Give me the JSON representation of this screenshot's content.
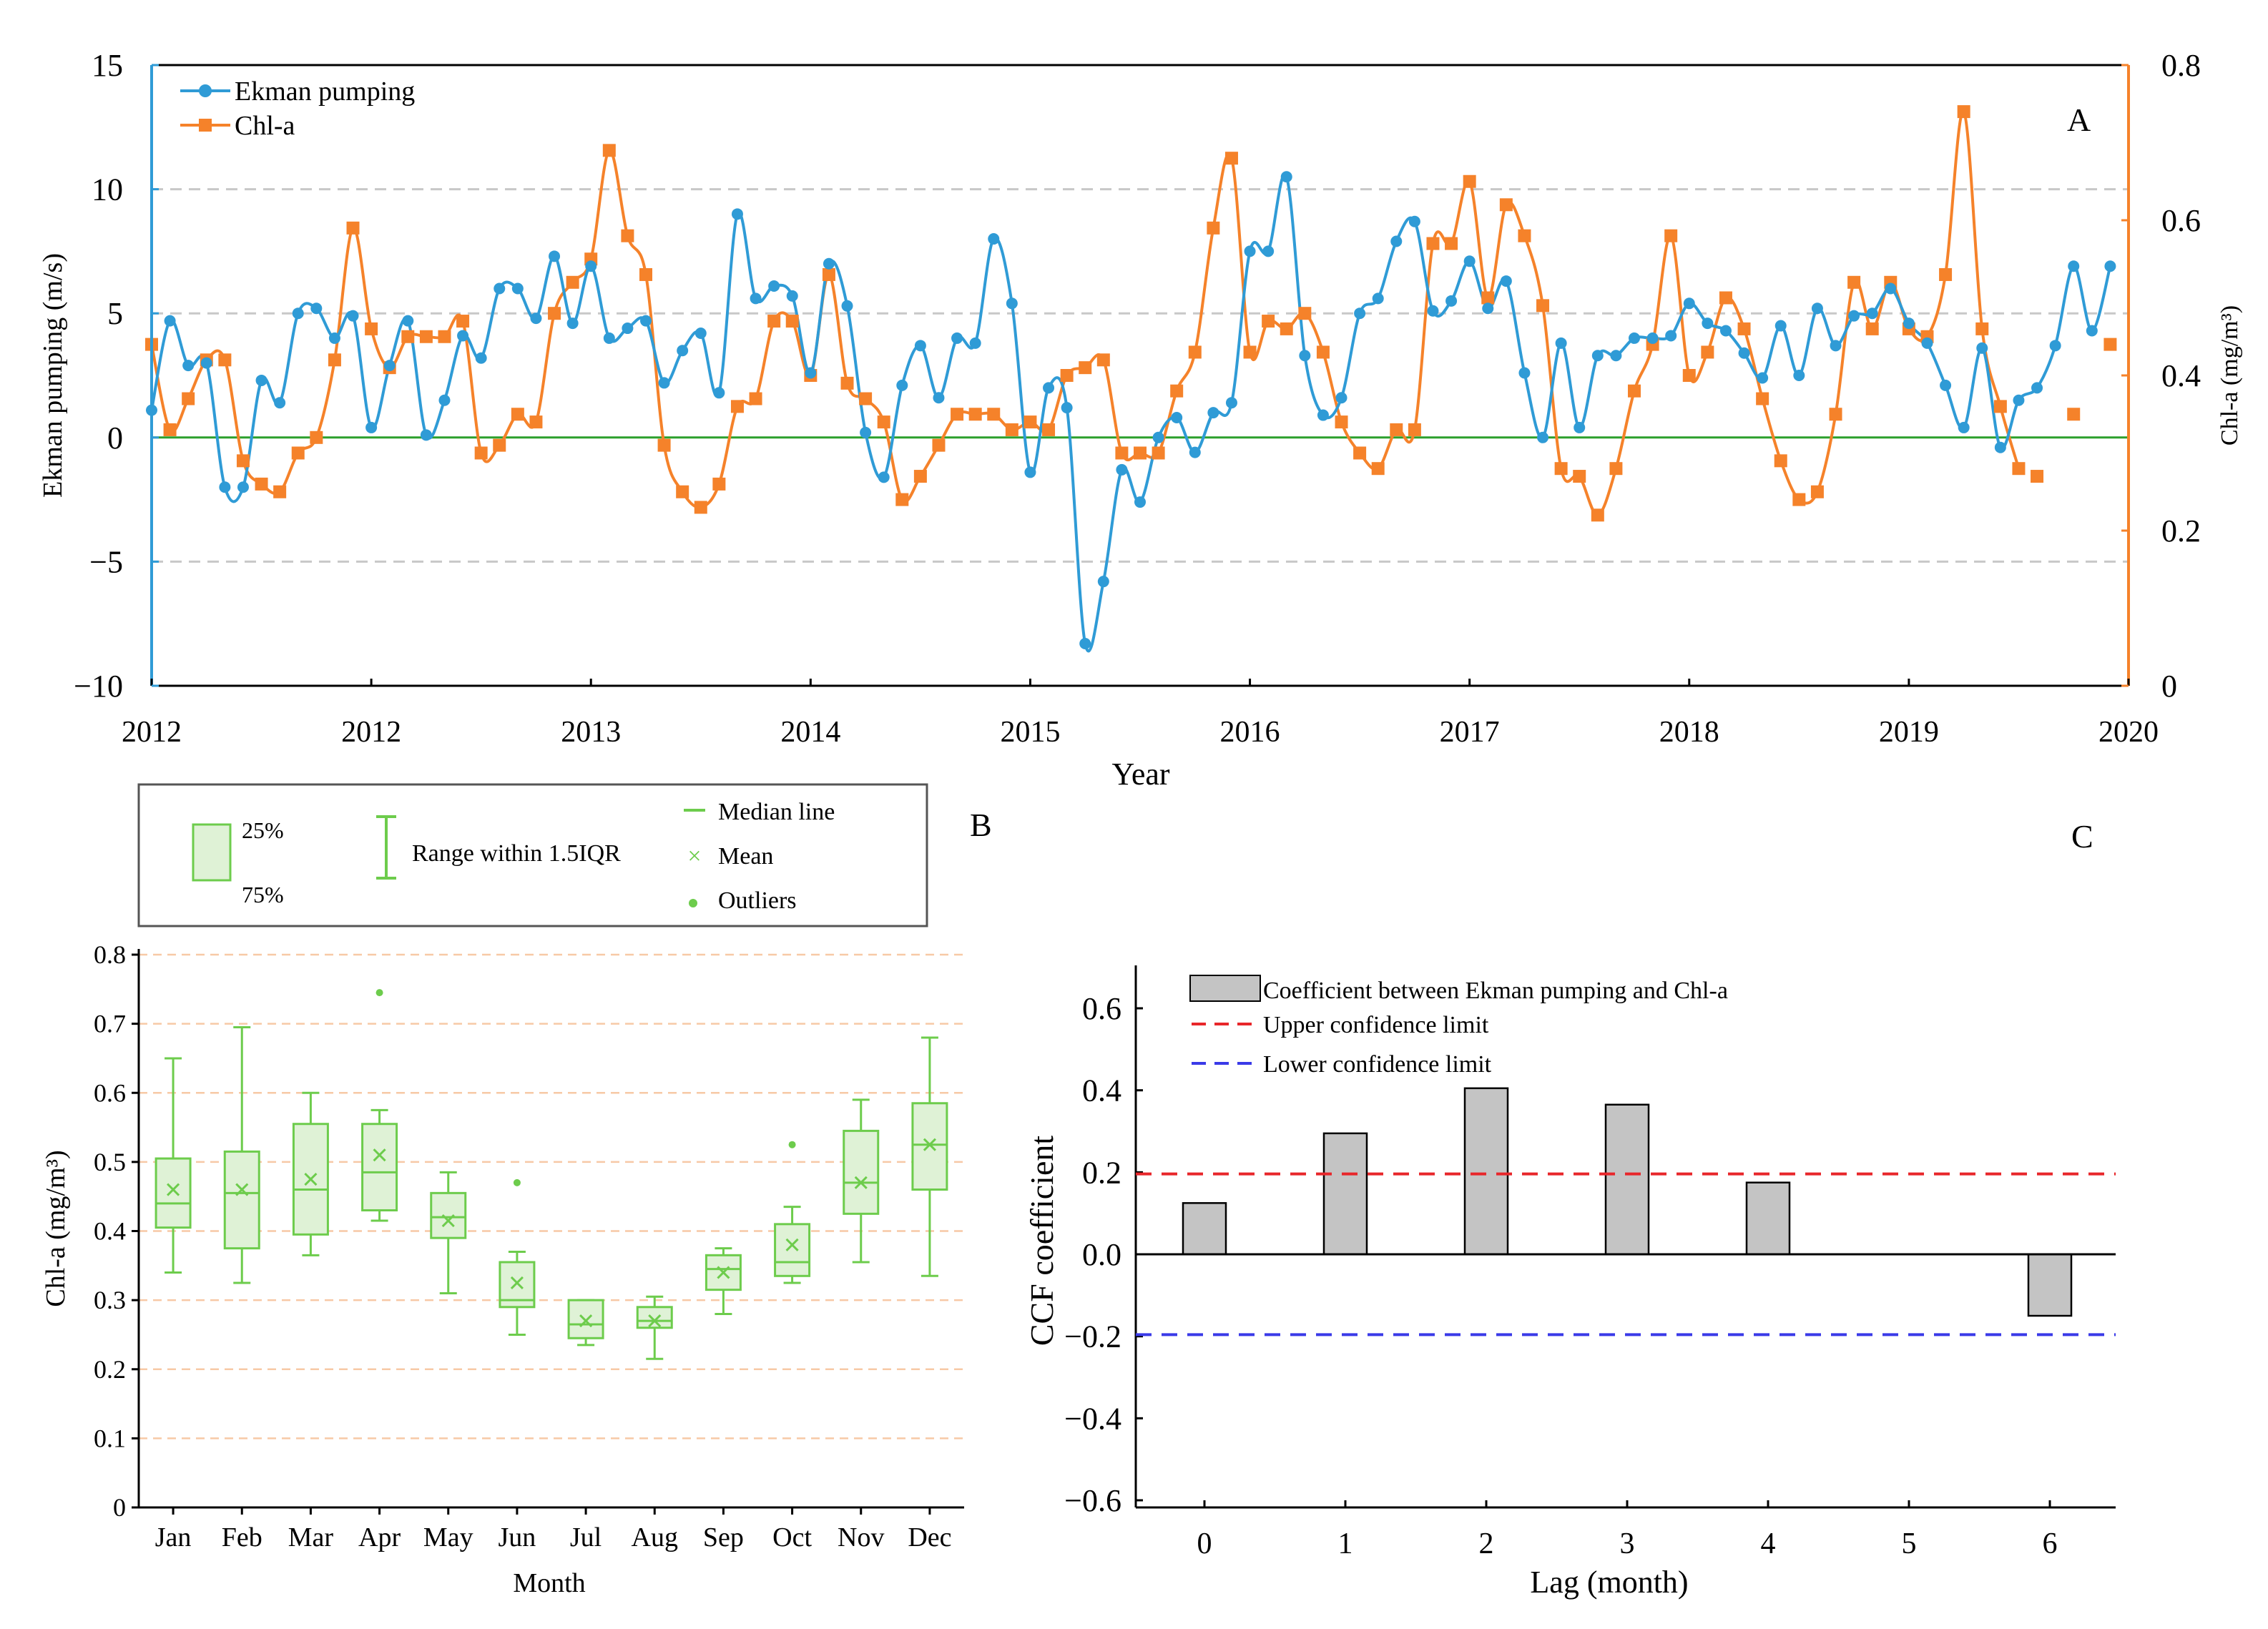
{
  "colors": {
    "ekman": "#2f9bd6",
    "chla": "#f5822a",
    "zero_line": "#2ca02c",
    "box_fill": "#dff2d6",
    "box_stroke": "#6dcc4c",
    "grid_a": "#c8c8c8",
    "grid_b": "#f7c9a6",
    "bar_fill": "#c4c4c4",
    "upper_limit": "#e8262a",
    "lower_limit": "#3a3ae8"
  },
  "chart_data": [
    {
      "panel": "A",
      "type": "line",
      "title": "",
      "panel_label": "A",
      "xlabel": "Year",
      "ylabel": "Ekman pumping (m/s)",
      "ylabel_right": "Chl-a (mg/m³)",
      "x_tick_labels": [
        "2012",
        "2012",
        "2013",
        "2014",
        "2015",
        "2016",
        "2017",
        "2018",
        "2019",
        "2020"
      ],
      "y_ticks": [
        "-10",
        "-5",
        "0",
        "5",
        "10",
        "15"
      ],
      "y_ticks_right": [
        "0",
        "0.2",
        "0.4",
        "0.6",
        "0.8"
      ],
      "ylim": [
        -10,
        15
      ],
      "ylim_right": [
        0,
        0.8
      ],
      "xlim_months": [
        0,
        108
      ],
      "gridlines_y": [
        -5,
        5,
        10
      ],
      "legend_position": "top-left",
      "series": [
        {
          "name": "Ekman pumping",
          "axis": "left",
          "marker": "circle",
          "values": [
            1.1,
            4.7,
            2.9,
            3.0,
            -2.0,
            -2.0,
            2.3,
            1.4,
            5.0,
            5.2,
            4.0,
            4.9,
            0.4,
            2.9,
            4.7,
            0.1,
            1.5,
            4.1,
            3.2,
            6.0,
            6.0,
            4.8,
            7.3,
            4.6,
            6.9,
            4.0,
            4.4,
            4.7,
            2.2,
            3.5,
            4.2,
            1.8,
            9.0,
            5.6,
            6.1,
            5.7,
            2.6,
            7.0,
            5.3,
            0.2,
            -1.6,
            2.1,
            3.7,
            1.6,
            4.0,
            3.8,
            8.0,
            5.4,
            -1.4,
            2.0,
            1.2,
            -8.3,
            -5.8,
            -1.3,
            -2.6,
            0.0,
            0.8,
            -0.6,
            1.0,
            1.4,
            7.5,
            7.5,
            10.5,
            3.3,
            0.9,
            1.6,
            5.0,
            5.6,
            7.9,
            8.7,
            5.1,
            5.5,
            7.1,
            5.2,
            6.3,
            2.6,
            0.0,
            3.8,
            0.4,
            3.3,
            3.3,
            4.0,
            4.0,
            4.1,
            5.4,
            4.6,
            4.3,
            3.4,
            2.4,
            4.5,
            2.5,
            5.2,
            3.7,
            4.9,
            5.0,
            6.0,
            4.6,
            3.8,
            2.1,
            0.4,
            3.6,
            -0.4,
            1.5,
            2.0,
            3.7,
            6.9,
            4.3,
            6.9
          ]
        },
        {
          "name": "Chl-a",
          "axis": "right",
          "marker": "square",
          "values": [
            0.44,
            0.33,
            0.37,
            0.42,
            0.42,
            0.29,
            0.26,
            0.25,
            0.3,
            0.32,
            0.42,
            0.59,
            0.46,
            0.41,
            0.45,
            0.45,
            0.45,
            0.47,
            0.3,
            0.31,
            0.35,
            0.34,
            0.48,
            0.52,
            0.55,
            0.69,
            0.58,
            0.53,
            0.31,
            0.25,
            0.23,
            0.26,
            0.36,
            0.37,
            0.47,
            0.47,
            0.4,
            0.53,
            0.39,
            0.37,
            0.34,
            0.24,
            0.27,
            0.31,
            0.35,
            0.35,
            0.35,
            0.33,
            0.34,
            0.33,
            0.4,
            0.41,
            0.42,
            0.3,
            0.3,
            0.3,
            0.38,
            0.43,
            0.59,
            0.68,
            0.43,
            0.47,
            0.46,
            0.48,
            0.43,
            0.34,
            0.3,
            0.28,
            0.33,
            0.33,
            0.57,
            0.57,
            0.65,
            0.5,
            0.62,
            0.58,
            0.49,
            0.28,
            0.27,
            0.22,
            0.28,
            0.38,
            0.44,
            0.58,
            0.4,
            0.43,
            0.5,
            0.46,
            0.37,
            0.29,
            0.24,
            0.25,
            0.35,
            0.52,
            0.46,
            0.52,
            0.46,
            0.45,
            0.53,
            0.74,
            0.46,
            0.36,
            0.28,
            0.27,
            null,
            0.35,
            null,
            0.44
          ]
        }
      ]
    },
    {
      "panel": "B",
      "type": "box",
      "title": "",
      "panel_label": "B",
      "xlabel": "Month",
      "ylabel": "Chl-a (mg/m³)",
      "categories": [
        "Jan",
        "Feb",
        "Mar",
        "Apr",
        "May",
        "Jun",
        "Jul",
        "Aug",
        "Sep",
        "Oct",
        "Nov",
        "Dec"
      ],
      "y_ticks": [
        "0",
        "0.1",
        "0.2",
        "0.3",
        "0.4",
        "0.5",
        "0.6",
        "0.7",
        "0.8"
      ],
      "ylim": [
        0,
        0.8
      ],
      "gridlines_y": [
        0.1,
        0.2,
        0.3,
        0.4,
        0.5,
        0.6,
        0.7,
        0.8
      ],
      "boxes": [
        {
          "min": 0.34,
          "q1": 0.405,
          "median": 0.44,
          "mean": 0.46,
          "q3": 0.505,
          "max": 0.65,
          "outliers": []
        },
        {
          "min": 0.325,
          "q1": 0.375,
          "median": 0.455,
          "mean": 0.46,
          "q3": 0.515,
          "max": 0.695,
          "outliers": []
        },
        {
          "min": 0.365,
          "q1": 0.395,
          "median": 0.46,
          "mean": 0.475,
          "q3": 0.555,
          "max": 0.6,
          "outliers": []
        },
        {
          "min": 0.415,
          "q1": 0.43,
          "median": 0.485,
          "mean": 0.51,
          "q3": 0.555,
          "max": 0.575,
          "outliers": [
            0.745
          ]
        },
        {
          "min": 0.31,
          "q1": 0.39,
          "median": 0.42,
          "mean": 0.415,
          "q3": 0.455,
          "max": 0.485,
          "outliers": []
        },
        {
          "min": 0.25,
          "q1": 0.29,
          "median": 0.3,
          "mean": 0.325,
          "q3": 0.355,
          "max": 0.37,
          "outliers": [
            0.47
          ]
        },
        {
          "min": 0.235,
          "q1": 0.245,
          "median": 0.265,
          "mean": 0.27,
          "q3": 0.3,
          "max": 0.3,
          "outliers": []
        },
        {
          "min": 0.215,
          "q1": 0.26,
          "median": 0.27,
          "mean": 0.27,
          "q3": 0.29,
          "max": 0.305,
          "outliers": []
        },
        {
          "min": 0.28,
          "q1": 0.315,
          "median": 0.345,
          "mean": 0.34,
          "q3": 0.365,
          "max": 0.375,
          "outliers": []
        },
        {
          "min": 0.325,
          "q1": 0.335,
          "median": 0.355,
          "mean": 0.38,
          "q3": 0.41,
          "max": 0.435,
          "outliers": [
            0.525
          ]
        },
        {
          "min": 0.355,
          "q1": 0.425,
          "median": 0.47,
          "mean": 0.47,
          "q3": 0.545,
          "max": 0.59,
          "outliers": []
        },
        {
          "min": 0.335,
          "q1": 0.46,
          "median": 0.525,
          "mean": 0.525,
          "q3": 0.585,
          "max": 0.68,
          "outliers": []
        }
      ],
      "legend": {
        "box_top": "25%",
        "box_bottom": "75%",
        "whisker": "Range within 1.5IQR",
        "median": "Median line",
        "mean": "Mean",
        "outliers": "Outliers"
      }
    },
    {
      "panel": "C",
      "type": "bar",
      "title": "",
      "panel_label": "C",
      "xlabel": "Lag (month)",
      "ylabel": "CCF coefficient",
      "categories": [
        "0",
        "1",
        "2",
        "3",
        "4",
        "5",
        "6"
      ],
      "values": [
        0.125,
        0.295,
        0.405,
        0.365,
        0.175,
        0.0,
        -0.15
      ],
      "y_ticks": [
        "0.6",
        "0.4",
        "0.2",
        "0.0",
        "-0.2",
        "-0.4",
        "-0.6"
      ],
      "ylim": [
        -0.6,
        0.7
      ],
      "upper_confidence": 0.196,
      "lower_confidence": -0.196,
      "legend": {
        "bar": "Coefficient between Ekman pumping and Chl-a",
        "upper": "Upper confidence limit",
        "lower": "Lower confidence limit"
      }
    }
  ]
}
